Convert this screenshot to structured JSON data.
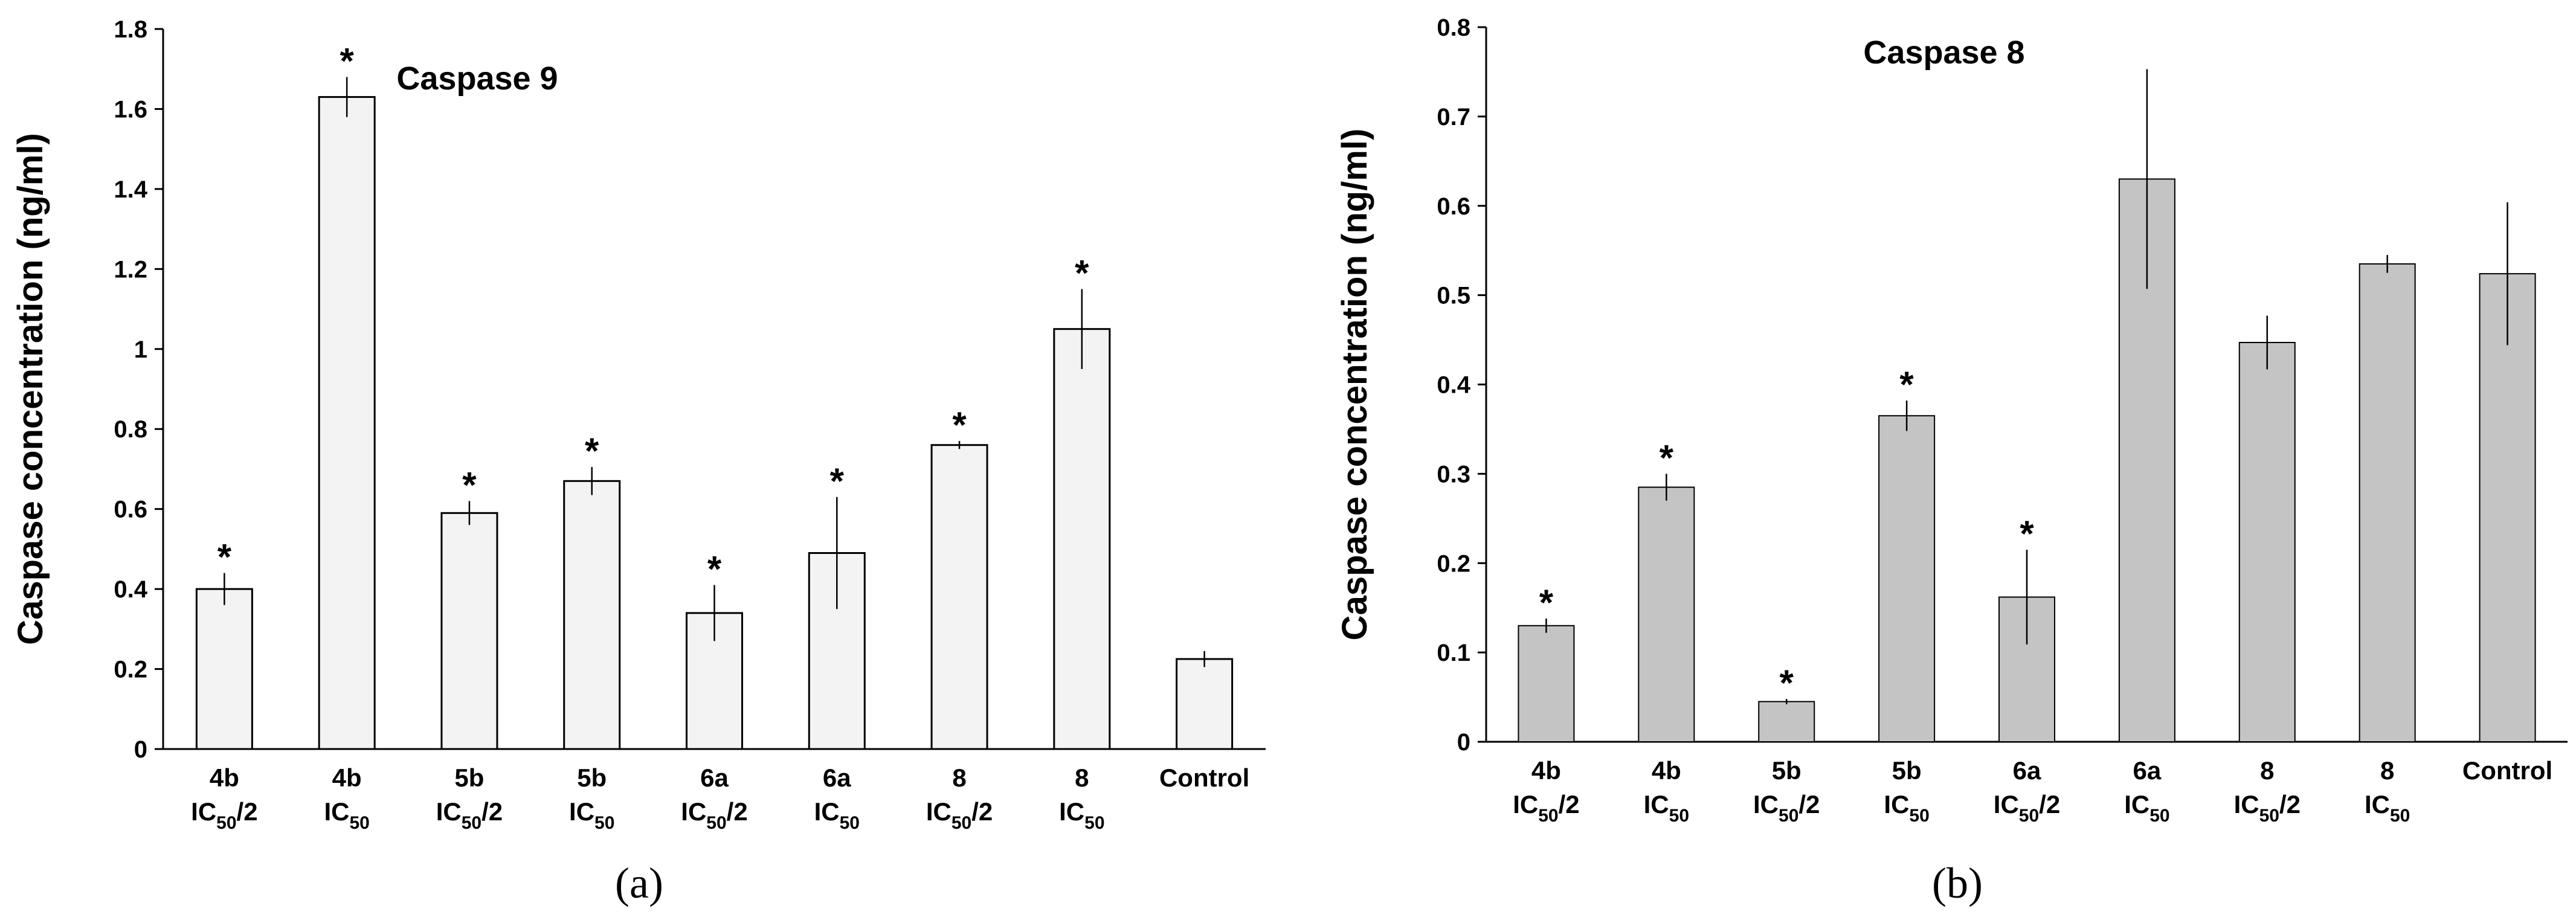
{
  "chart_data": [
    {
      "type": "bar",
      "title": "Caspase 9",
      "panel_label": "(a)",
      "ylabel": "Caspase concentration (ng/ml)",
      "xlabel": "",
      "ylim": [
        0,
        1.8
      ],
      "yticks": [
        0,
        0.2,
        0.4,
        0.6,
        0.8,
        1,
        1.2,
        1.4,
        1.6,
        1.8
      ],
      "ytick_labels": [
        "0",
        "0.2",
        "0.4",
        "0.6",
        "0.8",
        "1",
        "1.2",
        "1.4",
        "1.6",
        "1.8"
      ],
      "bar_fill": "#f3f3f3",
      "categories": [
        {
          "line1": "4b",
          "ic_base": "IC",
          "ic_sub": "50",
          "ic_suffix": "/2"
        },
        {
          "line1": "4b",
          "ic_base": "IC",
          "ic_sub": "50",
          "ic_suffix": ""
        },
        {
          "line1": "5b",
          "ic_base": "IC",
          "ic_sub": "50",
          "ic_suffix": "/2"
        },
        {
          "line1": "5b",
          "ic_base": "IC",
          "ic_sub": "50",
          "ic_suffix": ""
        },
        {
          "line1": "6a",
          "ic_base": "IC",
          "ic_sub": "50",
          "ic_suffix": "/2"
        },
        {
          "line1": "6a",
          "ic_base": "IC",
          "ic_sub": "50",
          "ic_suffix": ""
        },
        {
          "line1": "8",
          "ic_base": "IC",
          "ic_sub": "50",
          "ic_suffix": "/2"
        },
        {
          "line1": "8",
          "ic_base": "IC",
          "ic_sub": "50",
          "ic_suffix": ""
        },
        {
          "line1": "Control",
          "ic_base": "",
          "ic_sub": "",
          "ic_suffix": ""
        }
      ],
      "values": [
        0.4,
        1.63,
        0.59,
        0.67,
        0.34,
        0.49,
        0.76,
        1.05,
        0.225
      ],
      "errors": [
        0.04,
        0.05,
        0.03,
        0.035,
        0.07,
        0.14,
        0.01,
        0.1,
        0.02
      ],
      "significance": [
        "*",
        "*",
        "*",
        "*",
        "*",
        "*",
        "*",
        "*",
        ""
      ]
    },
    {
      "type": "bar",
      "title": "Caspase 8",
      "panel_label": "(b)",
      "ylabel": "Caspase concentration (ng/ml)",
      "xlabel": "",
      "ylim": [
        0,
        0.8
      ],
      "yticks": [
        0,
        0.1,
        0.2,
        0.3,
        0.4,
        0.5,
        0.6,
        0.7,
        0.8
      ],
      "ytick_labels": [
        "0",
        "0.1",
        "0.2",
        "0.3",
        "0.4",
        "0.5",
        "0.6",
        "0.7",
        "0.8"
      ],
      "bar_fill": "#c4c4c4",
      "categories": [
        {
          "line1": "4b",
          "ic_base": "IC",
          "ic_sub": "50",
          "ic_suffix": "/2"
        },
        {
          "line1": "4b",
          "ic_base": "IC",
          "ic_sub": "50",
          "ic_suffix": ""
        },
        {
          "line1": "5b",
          "ic_base": "IC",
          "ic_sub": "50",
          "ic_suffix": "/2"
        },
        {
          "line1": "5b",
          "ic_base": "IC",
          "ic_sub": "50",
          "ic_suffix": ""
        },
        {
          "line1": "6a",
          "ic_base": "IC",
          "ic_sub": "50",
          "ic_suffix": "/2"
        },
        {
          "line1": "6a",
          "ic_base": "IC",
          "ic_sub": "50",
          "ic_suffix": ""
        },
        {
          "line1": "8",
          "ic_base": "IC",
          "ic_sub": "50",
          "ic_suffix": "/2"
        },
        {
          "line1": "8",
          "ic_base": "IC",
          "ic_sub": "50",
          "ic_suffix": ""
        },
        {
          "line1": "Control",
          "ic_base": "",
          "ic_sub": "",
          "ic_suffix": ""
        }
      ],
      "values": [
        0.13,
        0.285,
        0.045,
        0.365,
        0.162,
        0.63,
        0.447,
        0.535,
        0.524
      ],
      "errors": [
        0.008,
        0.015,
        0.003,
        0.017,
        0.053,
        0.123,
        0.03,
        0.01,
        0.08
      ],
      "significance": [
        "*",
        "*",
        "*",
        "*",
        "*",
        "",
        "",
        "",
        ""
      ]
    }
  ]
}
